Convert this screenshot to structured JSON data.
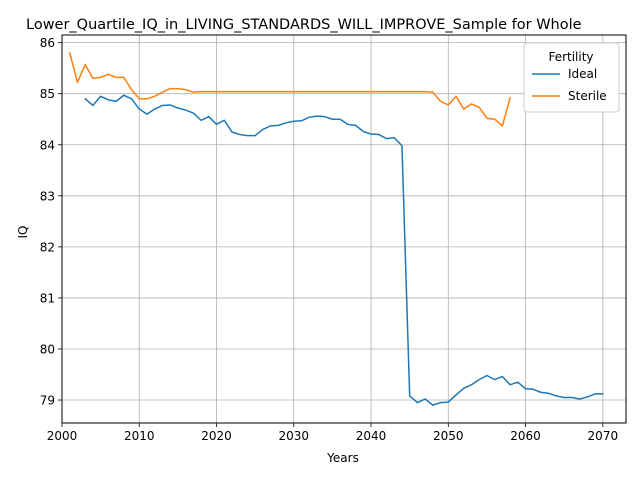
{
  "chart_data": {
    "type": "line",
    "title": "Lower_Quartile_IQ_in_LIVING_STANDARDS_WILL_IMPROVE_Sample for Whole",
    "xlabel": "Years",
    "ylabel": "IQ",
    "xlim": [
      2000,
      2073
    ],
    "ylim": [
      78.55,
      86.15
    ],
    "xticks": [
      2000,
      2010,
      2020,
      2030,
      2040,
      2050,
      2060,
      2070
    ],
    "yticks": [
      79,
      80,
      81,
      82,
      83,
      84,
      85,
      86
    ],
    "grid": true,
    "legend": {
      "title": "Fertility",
      "placement": "top-right"
    },
    "series": [
      {
        "name": "Ideal",
        "color": "#1f77b4",
        "x": [
          2003,
          2004,
          2005,
          2006,
          2007,
          2008,
          2009,
          2010,
          2011,
          2012,
          2013,
          2014,
          2015,
          2016,
          2017,
          2018,
          2019,
          2020,
          2021,
          2022,
          2023,
          2024,
          2025,
          2026,
          2027,
          2028,
          2029,
          2030,
          2031,
          2032,
          2033,
          2034,
          2035,
          2036,
          2037,
          2038,
          2039,
          2040,
          2041,
          2042,
          2043,
          2044,
          2045,
          2046,
          2047,
          2048,
          2049,
          2050,
          2051,
          2052,
          2053,
          2054,
          2055,
          2056,
          2057,
          2058,
          2059,
          2060,
          2061,
          2062,
          2063,
          2064,
          2065,
          2066,
          2067,
          2068,
          2069,
          2070
        ],
        "values": [
          84.9,
          84.77,
          84.95,
          84.88,
          84.85,
          84.97,
          84.9,
          84.7,
          84.6,
          84.7,
          84.77,
          84.78,
          84.72,
          84.68,
          84.62,
          84.48,
          84.55,
          84.4,
          84.48,
          84.25,
          84.2,
          84.18,
          84.18,
          84.3,
          84.37,
          84.38,
          84.43,
          84.46,
          84.47,
          84.54,
          84.56,
          84.55,
          84.5,
          84.5,
          84.4,
          84.38,
          84.26,
          84.21,
          84.2,
          84.12,
          84.14,
          83.98,
          79.08,
          78.95,
          79.02,
          78.9,
          78.95,
          78.96,
          79.1,
          79.23,
          79.3,
          79.4,
          79.48,
          79.4,
          79.46,
          79.3,
          79.35,
          79.22,
          79.21,
          79.15,
          79.13,
          79.08,
          79.05,
          79.05,
          79.02,
          79.06,
          79.12,
          79.12
        ]
      },
      {
        "name": "Sterile",
        "color": "#ff7f0e",
        "x": [
          2001,
          2002,
          2003,
          2004,
          2005,
          2006,
          2007,
          2008,
          2009,
          2010,
          2011,
          2012,
          2013,
          2014,
          2015,
          2016,
          2017,
          2018,
          2019,
          2020,
          2021,
          2022,
          2023,
          2024,
          2025,
          2026,
          2027,
          2028,
          2029,
          2030,
          2031,
          2032,
          2033,
          2034,
          2035,
          2036,
          2037,
          2038,
          2039,
          2040,
          2041,
          2042,
          2043,
          2044,
          2045,
          2046,
          2047,
          2048,
          2049,
          2050,
          2051,
          2052,
          2053,
          2054,
          2055,
          2056,
          2057,
          2058
        ],
        "values": [
          85.8,
          85.22,
          85.57,
          85.3,
          85.32,
          85.38,
          85.32,
          85.32,
          85.08,
          84.9,
          84.9,
          84.95,
          85.03,
          85.1,
          85.1,
          85.08,
          85.03,
          85.04,
          85.04,
          85.04,
          85.04,
          85.04,
          85.04,
          85.04,
          85.04,
          85.04,
          85.04,
          85.04,
          85.04,
          85.04,
          85.04,
          85.04,
          85.04,
          85.04,
          85.04,
          85.04,
          85.04,
          85.04,
          85.04,
          85.04,
          85.04,
          85.04,
          85.04,
          85.04,
          85.04,
          85.04,
          85.04,
          85.03,
          84.85,
          84.78,
          84.95,
          84.7,
          84.8,
          84.73,
          84.52,
          84.5,
          84.37,
          84.92
        ]
      }
    ]
  }
}
